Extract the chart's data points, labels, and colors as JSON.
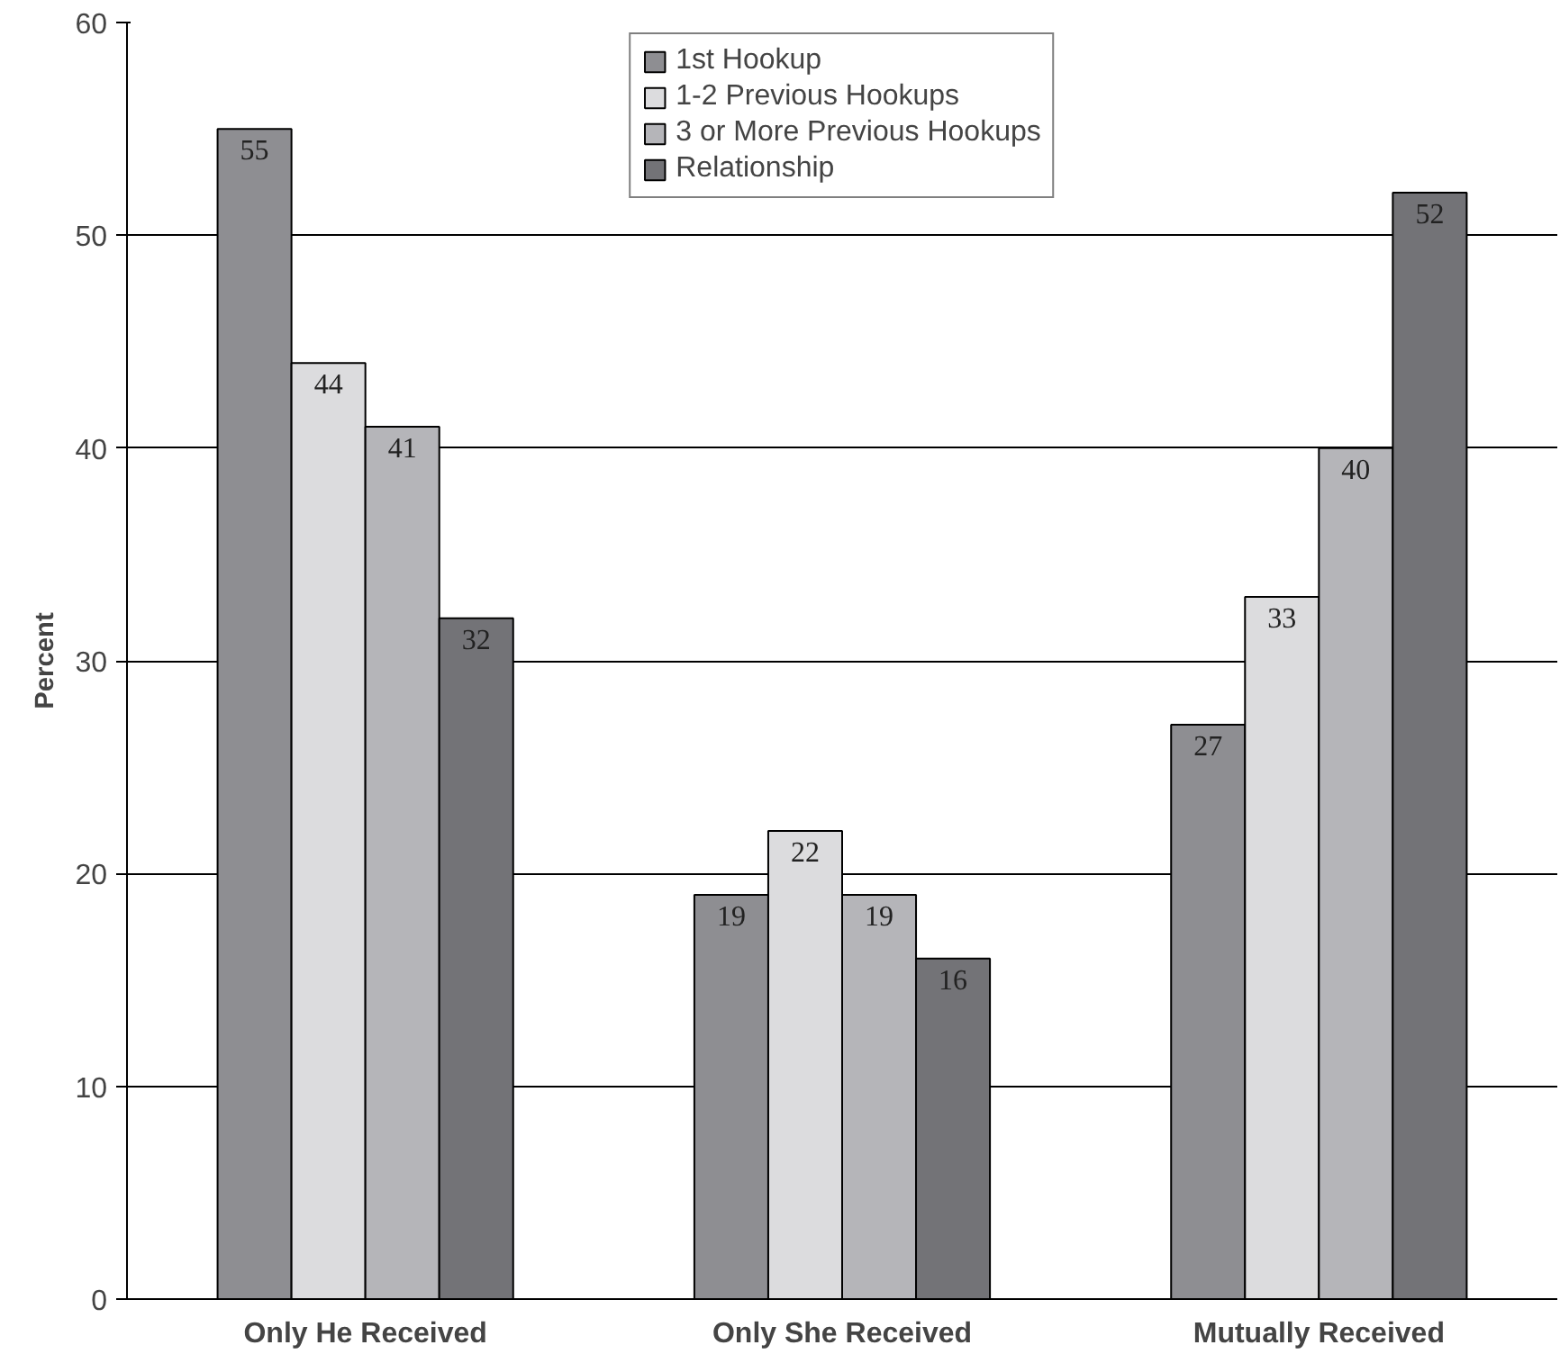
{
  "chart_data": {
    "type": "bar",
    "ylabel": "Percent",
    "categories": [
      "Only He Received",
      "Only She Received",
      "Mutually Received"
    ],
    "series": [
      {
        "name": "1st Hookup",
        "color": "#8e8e92",
        "values": [
          55,
          19,
          27
        ]
      },
      {
        "name": "1-2 Previous Hookups",
        "color": "#dcdcde",
        "values": [
          44,
          22,
          33
        ]
      },
      {
        "name": "3 or More Previous Hookups",
        "color": "#b5b5b9",
        "values": [
          41,
          19,
          40
        ]
      },
      {
        "name": "Relationship",
        "color": "#737377",
        "values": [
          32,
          16,
          52
        ]
      }
    ],
    "ylim": [
      0,
      60
    ],
    "yticks": [
      0,
      10,
      20,
      30,
      40,
      50,
      60
    ],
    "grid": "y",
    "legend": "top",
    "data_labels": true
  }
}
